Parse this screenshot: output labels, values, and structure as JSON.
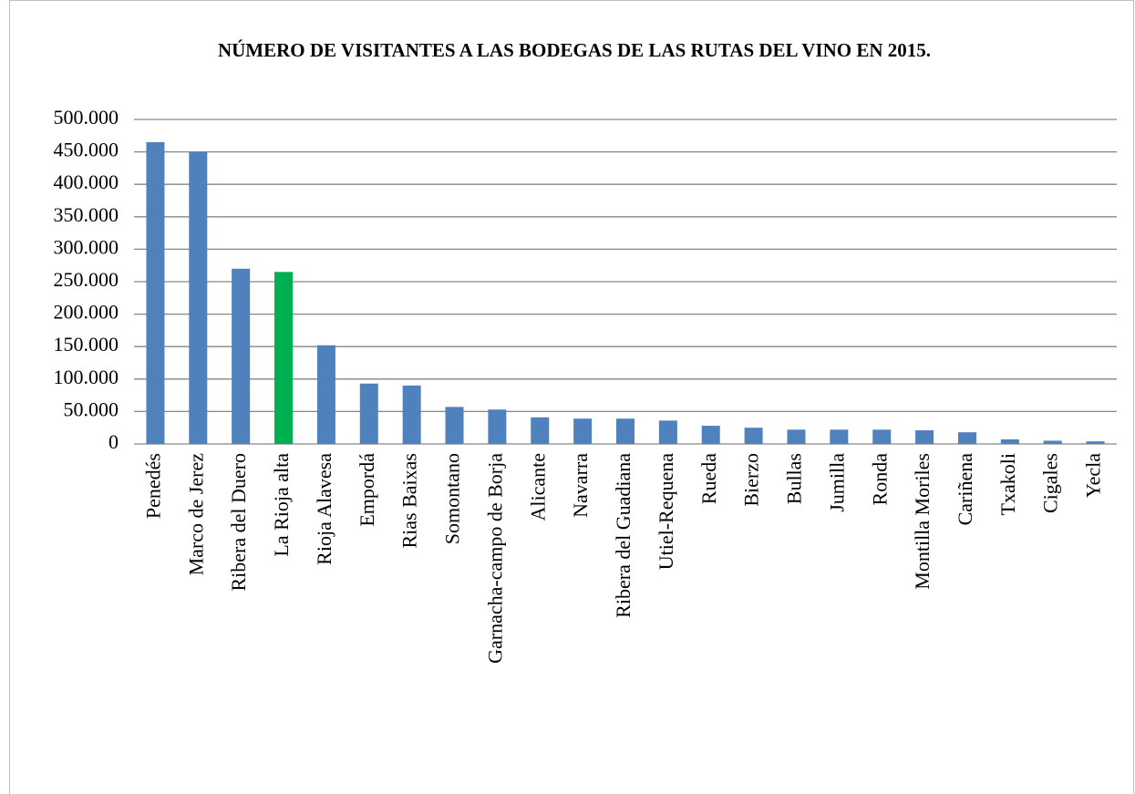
{
  "chart_data": {
    "type": "bar",
    "title": "NÚMERO DE VISITANTES A LAS BODEGAS DE LAS RUTAS DEL VINO EN 2015.",
    "categories": [
      "Penedés",
      "Marco de Jerez",
      "Ribera del Duero",
      "La Rioja alta",
      "Rioja Alavesa",
      "Empordá",
      "Rias Baixas",
      "Somontano",
      "Garnacha-campo de Borja",
      "Alicante",
      "Navarra",
      "Ribera del Guadiana",
      "Utiel-Requena",
      "Rueda",
      "Bierzo",
      "Bullas",
      "Jumilla",
      "Ronda",
      "Montilla Moriles",
      "Cariñena",
      "Txakoli",
      "Cigales",
      "Yecla"
    ],
    "values": [
      465000,
      450000,
      270000,
      265000,
      152000,
      93000,
      90000,
      57000,
      53000,
      41000,
      39000,
      39000,
      36000,
      28000,
      25000,
      22000,
      22000,
      22000,
      21000,
      18000,
      7000,
      5000,
      4000
    ],
    "colors": [
      "#4f81bd",
      "#4f81bd",
      "#4f81bd",
      "#00b050",
      "#4f81bd",
      "#4f81bd",
      "#4f81bd",
      "#4f81bd",
      "#4f81bd",
      "#4f81bd",
      "#4f81bd",
      "#4f81bd",
      "#4f81bd",
      "#4f81bd",
      "#4f81bd",
      "#4f81bd",
      "#4f81bd",
      "#4f81bd",
      "#4f81bd",
      "#4f81bd",
      "#4f81bd",
      "#4f81bd",
      "#4f81bd"
    ],
    "ylim": [
      0,
      500000
    ],
    "yticks": [
      0,
      {
        "value": 50000,
        "label": "50.000"
      },
      {
        "value": 100000,
        "label": "100.000"
      },
      {
        "value": 150000,
        "label": "150.000"
      },
      {
        "value": 200000,
        "label": "200.000"
      },
      {
        "value": 250000,
        "label": "250.000"
      },
      {
        "value": 300000,
        "label": "300.000"
      },
      {
        "value": 350000,
        "label": "350.000"
      },
      {
        "value": 400000,
        "label": "400.000"
      },
      {
        "value": 450000,
        "label": "450.000"
      },
      {
        "value": 500000,
        "label": "500.000"
      }
    ],
    "grid": true
  }
}
